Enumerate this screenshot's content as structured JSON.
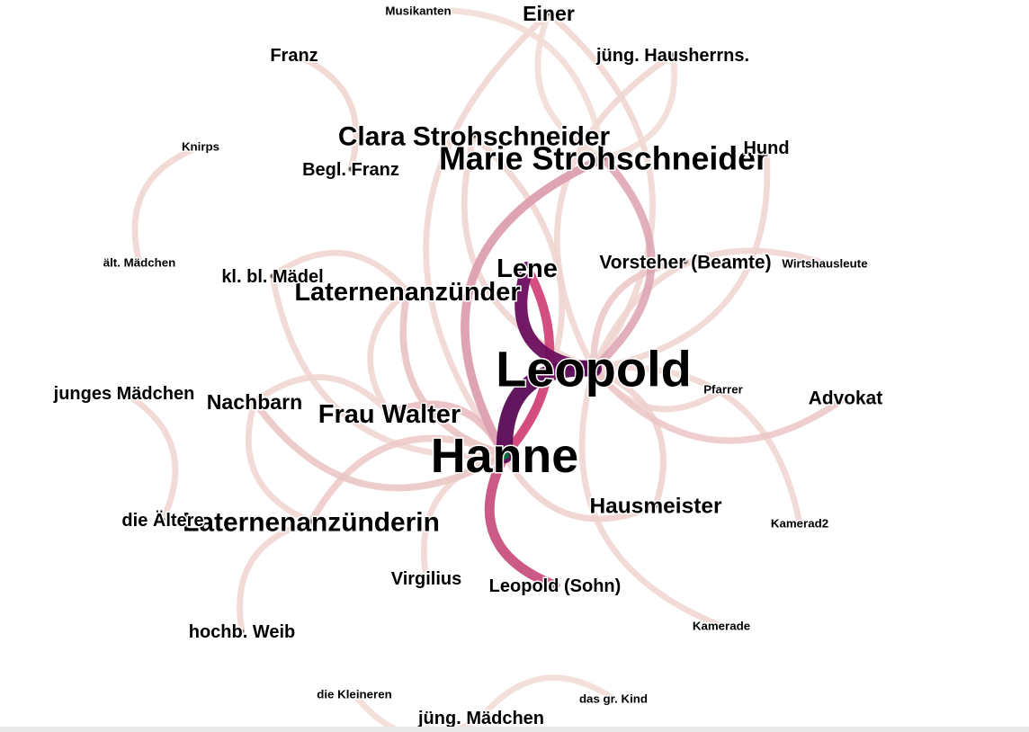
{
  "network": {
    "nodes": [
      {
        "id": "leopold",
        "label": "Leopold",
        "weight": 1.0
      },
      {
        "id": "hanne",
        "label": "Hanne",
        "weight": 0.95
      },
      {
        "id": "marie",
        "label": "Marie Strohschneider",
        "weight": 0.55
      },
      {
        "id": "clara",
        "label": "Clara Strohschneider",
        "weight": 0.42
      },
      {
        "id": "laternenanzuenderin",
        "label": "Laternenanzünderin",
        "weight": 0.42
      },
      {
        "id": "laternenanzuender",
        "label": "Laternenanzünder",
        "weight": 0.4
      },
      {
        "id": "lene",
        "label": "Lene",
        "weight": 0.4
      },
      {
        "id": "frauwalter",
        "label": "Frau Walter",
        "weight": 0.4
      },
      {
        "id": "hausmeister",
        "label": "Hausmeister",
        "weight": 0.3
      },
      {
        "id": "einer",
        "label": "Einer",
        "weight": 0.27
      },
      {
        "id": "nachbarn",
        "label": "Nachbarn",
        "weight": 0.27
      },
      {
        "id": "vorsteher",
        "label": "Vorsteher (Beamte)",
        "weight": 0.22
      },
      {
        "id": "advokat",
        "label": "Advokat",
        "weight": 0.22
      },
      {
        "id": "hund",
        "label": "Hund",
        "weight": 0.2
      },
      {
        "id": "jungmaedchen",
        "label": "jüng. Mädchen",
        "weight": 0.2
      },
      {
        "id": "jungesmaedchen",
        "label": "junges Mädchen",
        "weight": 0.2
      },
      {
        "id": "leopoldsohn",
        "label": "Leopold (Sohn)",
        "weight": 0.2
      },
      {
        "id": "hochbweib",
        "label": "hochb. Weib",
        "weight": 0.2
      },
      {
        "id": "jungherrn",
        "label": "jüng. Hausherrns.",
        "weight": 0.2
      },
      {
        "id": "franz",
        "label": "Franz",
        "weight": 0.2
      },
      {
        "id": "beglfranz",
        "label": "Begl. Franz",
        "weight": 0.2
      },
      {
        "id": "kleinmaedel",
        "label": "kl. bl. Mädel",
        "weight": 0.2
      },
      {
        "id": "virgilius",
        "label": "Virgilius",
        "weight": 0.2
      },
      {
        "id": "dieaeltere",
        "label": "die Ältere",
        "weight": 0.2
      },
      {
        "id": "musikanten",
        "label": "Musikanten",
        "weight": 0.05
      },
      {
        "id": "knirps",
        "label": "Knirps",
        "weight": 0.05
      },
      {
        "id": "altmaedchen",
        "label": "ält. Mädchen",
        "weight": 0.05
      },
      {
        "id": "wirtshausleute",
        "label": "Wirtshausleute",
        "weight": 0.05
      },
      {
        "id": "pfarrer",
        "label": "Pfarrer",
        "weight": 0.05
      },
      {
        "id": "kamerad2",
        "label": "Kamerad2",
        "weight": 0.05
      },
      {
        "id": "kamerade",
        "label": "Kamerade",
        "weight": 0.05
      },
      {
        "id": "dieKleineren",
        "label": "die Kleineren",
        "weight": 0.05
      },
      {
        "id": "dasgrkind",
        "label": "das gr. Kind",
        "weight": 0.05
      }
    ],
    "edges": [
      {
        "source": "leopold",
        "target": "hanne",
        "weight": 1.0,
        "color": "#5a0a54"
      },
      {
        "source": "leopold",
        "target": "lene",
        "weight": 0.7,
        "color": "#6b0e5e"
      },
      {
        "source": "hanne",
        "target": "lene",
        "weight": 0.4,
        "color": "#d2457a"
      },
      {
        "source": "hanne",
        "target": "marie",
        "weight": 0.35,
        "color": "#dd9fb0"
      },
      {
        "source": "leopold",
        "target": "marie",
        "weight": 0.3,
        "color": "#dda2b1"
      },
      {
        "source": "hanne",
        "target": "leopoldsohn",
        "weight": 0.45,
        "color": "#c9517f"
      },
      {
        "source": "hanne",
        "target": "frauwalter",
        "weight": 0.25,
        "color": "#e8b9be"
      },
      {
        "source": "leopold",
        "target": "vorsteher",
        "weight": 0.18,
        "color": "#ecc5c7"
      },
      {
        "source": "leopold",
        "target": "advokat",
        "weight": 0.18,
        "color": "#ecc5c7"
      },
      {
        "source": "leopold",
        "target": "hausmeister",
        "weight": 0.15,
        "color": "#eed0cd"
      },
      {
        "source": "hanne",
        "target": "hausmeister",
        "weight": 0.15,
        "color": "#eed0cd"
      },
      {
        "source": "leopold",
        "target": "einer",
        "weight": 0.14,
        "color": "#f0d5d0"
      },
      {
        "source": "leopold",
        "target": "jungherrn",
        "weight": 0.14,
        "color": "#f0d5d0"
      },
      {
        "source": "leopold",
        "target": "hund",
        "weight": 0.14,
        "color": "#f0d5d0"
      },
      {
        "source": "leopold",
        "target": "wirtshausleute",
        "weight": 0.14,
        "color": "#efd2cf"
      },
      {
        "source": "leopold",
        "target": "pfarrer",
        "weight": 0.14,
        "color": "#efd2cf"
      },
      {
        "source": "leopold",
        "target": "kamerad2",
        "weight": 0.14,
        "color": "#f0d5d0"
      },
      {
        "source": "leopold",
        "target": "kamerade",
        "weight": 0.14,
        "color": "#f0d5d0"
      },
      {
        "source": "leopold",
        "target": "clara",
        "weight": 0.14,
        "color": "#efd3cf"
      },
      {
        "source": "hanne",
        "target": "clara",
        "weight": 0.14,
        "color": "#efd3cf"
      },
      {
        "source": "hanne",
        "target": "laternenanzuender",
        "weight": 0.2,
        "color": "#e7c0c0"
      },
      {
        "source": "hanne",
        "target": "laternenanzuenderin",
        "weight": 0.2,
        "color": "#ecc8c6"
      },
      {
        "source": "hanne",
        "target": "nachbarn",
        "weight": 0.2,
        "color": "#e9c4c3"
      },
      {
        "source": "hanne",
        "target": "kleinmaedel",
        "weight": 0.14,
        "color": "#f0d5d0"
      },
      {
        "source": "hanne",
        "target": "virgilius",
        "weight": 0.14,
        "color": "#f0d5d0"
      },
      {
        "source": "hanne",
        "target": "einer",
        "weight": 0.14,
        "color": "#f0d5d0"
      },
      {
        "source": "marie",
        "target": "musikanten",
        "weight": 0.14,
        "color": "#f2dad4"
      },
      {
        "source": "marie",
        "target": "einer",
        "weight": 0.14,
        "color": "#f2dad4"
      },
      {
        "source": "marie",
        "target": "jungherrn",
        "weight": 0.14,
        "color": "#f2dad4"
      },
      {
        "source": "franz",
        "target": "beglfranz",
        "weight": 0.14,
        "color": "#f0d3cd"
      },
      {
        "source": "knirps",
        "target": "altmaedchen",
        "weight": 0.14,
        "color": "#f0d5cf"
      },
      {
        "source": "jungesmaedchen",
        "target": "dieaeltere",
        "weight": 0.14,
        "color": "#f0d5cf"
      },
      {
        "source": "laternenanzuenderin",
        "target": "hochbweib",
        "weight": 0.14,
        "color": "#f0d5cf"
      },
      {
        "source": "laternenanzuenderin",
        "target": "nachbarn",
        "weight": 0.14,
        "color": "#f0d5cf"
      },
      {
        "source": "dieKleineren",
        "target": "jungmaedchen",
        "weight": 0.14,
        "color": "#f2dbd5"
      },
      {
        "source": "jungmaedchen",
        "target": "dasgrkind",
        "weight": 0.14,
        "color": "#f2dbd5"
      },
      {
        "source": "laternenanzuender",
        "target": "kleinmaedel",
        "weight": 0.14,
        "color": "#f0d5cf"
      },
      {
        "source": "frauwalter",
        "target": "laternenanzuender",
        "weight": 0.14,
        "color": "#f0d5cf"
      },
      {
        "source": "frauwalter",
        "target": "nachbarn",
        "weight": 0.14,
        "color": "#f0d5cf"
      }
    ]
  }
}
